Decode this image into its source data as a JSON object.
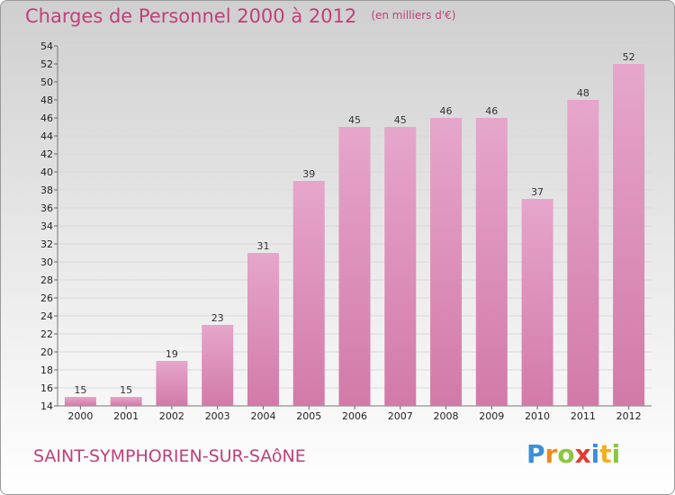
{
  "header": {
    "title": "Charges de Personnel 2000 à 2012",
    "subtitle": "(en milliers d'€)"
  },
  "footer": {
    "city": "SAINT-SYMPHORIEN-SUR-SAôNE",
    "brand_letters": [
      "P",
      "r",
      "o",
      "x",
      "i",
      "t",
      "i"
    ],
    "brand_colors": [
      "#3a8fd8",
      "#f08a1c",
      "#8cc63f",
      "#e43c2e",
      "#3a8fd8",
      "#f0b01c",
      "#8cc63f"
    ]
  },
  "chart_data": {
    "type": "bar",
    "title": "Charges de Personnel 2000 à 2012",
    "subtitle": "(en milliers d'€)",
    "categories": [
      "2000",
      "2001",
      "2002",
      "2003",
      "2004",
      "2005",
      "2006",
      "2007",
      "2008",
      "2009",
      "2010",
      "2011",
      "2012"
    ],
    "values": [
      15,
      15,
      19,
      23,
      31,
      39,
      45,
      45,
      46,
      46,
      37,
      48,
      52
    ],
    "ylim": [
      14,
      54
    ],
    "yticks": [
      14,
      16,
      18,
      20,
      22,
      24,
      26,
      28,
      30,
      32,
      34,
      36,
      38,
      40,
      42,
      44,
      46,
      48,
      50,
      52,
      54
    ],
    "grid": true,
    "bar_color": "#d27aa8",
    "bar_color_light": "#e6a6cb"
  }
}
